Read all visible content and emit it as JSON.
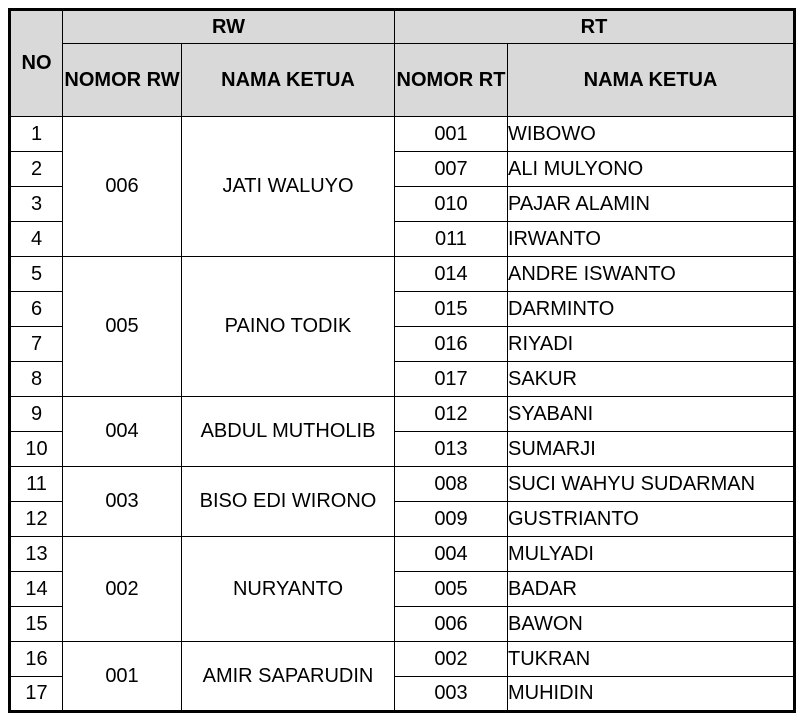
{
  "table": {
    "title_semantic": "RW and RT leaders list",
    "header": {
      "no": "NO",
      "rw_group": "RW",
      "rt_group": "RT",
      "nomor_rw": "NOMOR RW",
      "nama_ketua_rw": "NAMA KETUA",
      "nomor_rt": "NOMOR RT",
      "nama_ketua_rt": "NAMA KETUA"
    },
    "colors": {
      "header_bg": "#d9d9d9",
      "border": "#000000",
      "text": "#000000",
      "row_bg": "#ffffff"
    },
    "rw_groups": [
      {
        "nomor": "006",
        "nama": "JATI WALUYO",
        "rowspan": 4
      },
      {
        "nomor": "005",
        "nama": "PAINO TODIK",
        "rowspan": 4
      },
      {
        "nomor": "004",
        "nama": "ABDUL MUTHOLIB",
        "rowspan": 2
      },
      {
        "nomor": "003",
        "nama": "BISO EDI WIRONO",
        "rowspan": 2
      },
      {
        "nomor": "002",
        "nama": "NURYANTO",
        "rowspan": 3
      },
      {
        "nomor": "001",
        "nama": "AMIR SAPARUDIN",
        "rowspan": 2
      }
    ],
    "rows": [
      {
        "no": "1",
        "rt_nomor": "001",
        "rt_nama": "WIBOWO"
      },
      {
        "no": "2",
        "rt_nomor": "007",
        "rt_nama": "ALI MULYONO"
      },
      {
        "no": "3",
        "rt_nomor": "010",
        "rt_nama": "PAJAR ALAMIN"
      },
      {
        "no": "4",
        "rt_nomor": "011",
        "rt_nama": "IRWANTO"
      },
      {
        "no": "5",
        "rt_nomor": "014",
        "rt_nama": "ANDRE ISWANTO"
      },
      {
        "no": "6",
        "rt_nomor": "015",
        "rt_nama": "DARMINTO"
      },
      {
        "no": "7",
        "rt_nomor": "016",
        "rt_nama": "RIYADI"
      },
      {
        "no": "8",
        "rt_nomor": "017",
        "rt_nama": "SAKUR"
      },
      {
        "no": "9",
        "rt_nomor": "012",
        "rt_nama": "SYABANI"
      },
      {
        "no": "10",
        "rt_nomor": "013",
        "rt_nama": "SUMARJI"
      },
      {
        "no": "11",
        "rt_nomor": "008",
        "rt_nama": "SUCI WAHYU SUDARMAN"
      },
      {
        "no": "12",
        "rt_nomor": "009",
        "rt_nama": "GUSTRIANTO"
      },
      {
        "no": "13",
        "rt_nomor": "004",
        "rt_nama": "MULYADI"
      },
      {
        "no": "14",
        "rt_nomor": "005",
        "rt_nama": "BADAR"
      },
      {
        "no": "15",
        "rt_nomor": "006",
        "rt_nama": "BAWON"
      },
      {
        "no": "16",
        "rt_nomor": "002",
        "rt_nama": "TUKRAN"
      },
      {
        "no": "17",
        "rt_nomor": "003",
        "rt_nama": "MUHIDIN"
      }
    ]
  }
}
